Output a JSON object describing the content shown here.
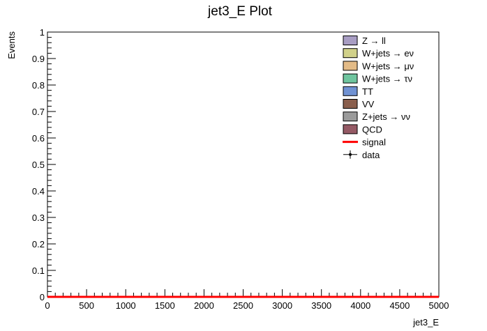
{
  "chart_data": {
    "type": "bar",
    "title": "jet3_E Plot",
    "xlabel": "jet3_E",
    "ylabel": "Events",
    "xlim": [
      0,
      5000
    ],
    "ylim": [
      0,
      1
    ],
    "x_ticks": [
      "0",
      "500",
      "1000",
      "1500",
      "2000",
      "2500",
      "3000",
      "3500",
      "4000",
      "4500",
      "5000"
    ],
    "y_ticks": [
      "0",
      "0.1",
      "0.2",
      "0.3",
      "0.4",
      "0.5",
      "0.6",
      "0.7",
      "0.8",
      "0.9",
      "1"
    ],
    "grid": false,
    "legend_position": "top-right",
    "series": [
      {
        "name": "Z → ll",
        "kind": "fill",
        "color": "#a89dc3",
        "values": []
      },
      {
        "name": "W+jets → eν",
        "kind": "fill",
        "color": "#d1d18a",
        "values": []
      },
      {
        "name": "W+jets → μν",
        "kind": "fill",
        "color": "#e3bb87",
        "values": []
      },
      {
        "name": "W+jets → τν",
        "kind": "fill",
        "color": "#6fc59f",
        "values": []
      },
      {
        "name": "TT",
        "kind": "fill",
        "color": "#7092d3",
        "values": []
      },
      {
        "name": "VV",
        "kind": "fill",
        "color": "#8a5f4d",
        "values": []
      },
      {
        "name": "Z+jets → νν",
        "kind": "fill",
        "color": "#9b9b9b",
        "values": []
      },
      {
        "name": "QCD",
        "kind": "fill",
        "color": "#955a65",
        "values": []
      },
      {
        "name": "signal",
        "kind": "line",
        "color": "#ff0000",
        "values": [
          0,
          0
        ]
      },
      {
        "name": "data",
        "kind": "marker",
        "color": "#000000",
        "values": []
      }
    ]
  }
}
